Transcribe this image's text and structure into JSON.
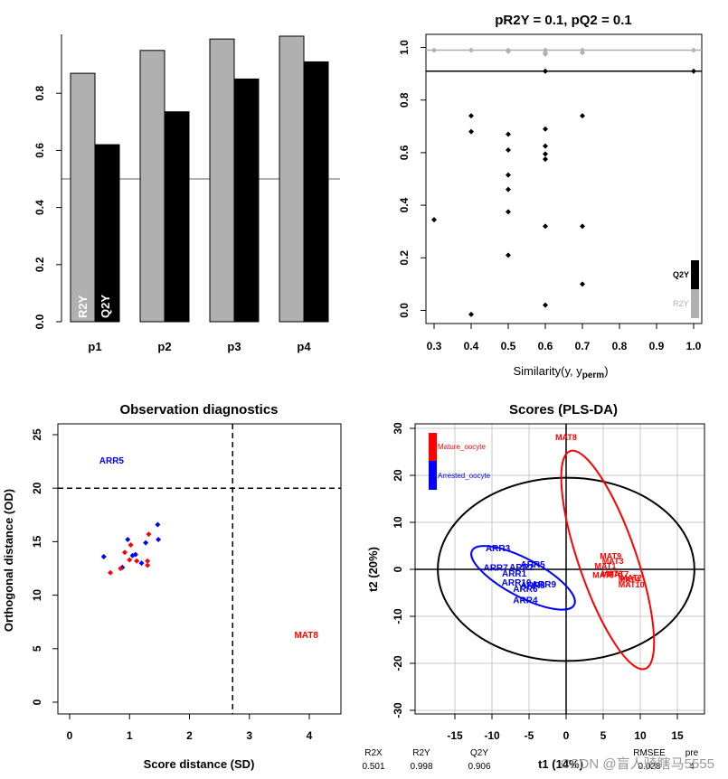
{
  "chart_data": [
    {
      "type": "bar",
      "title": "",
      "categories": [
        "p1",
        "p2",
        "p3",
        "p4"
      ],
      "series": [
        {
          "name": "R2Y",
          "values": [
            0.87,
            0.95,
            0.99,
            1.0
          ],
          "color": "#b0b0b0"
        },
        {
          "name": "Q2Y",
          "values": [
            0.62,
            0.735,
            0.85,
            0.91
          ],
          "color": "#000000"
        }
      ],
      "ylim": [
        0,
        1.0
      ],
      "yticks": [
        "0.0",
        "0.2",
        "0.4",
        "0.6",
        "0.8"
      ],
      "yticks_values": [
        0,
        0.2,
        0.4,
        0.6,
        0.8
      ],
      "reference_line": 0.5,
      "bar_labels": [
        "R2Y",
        "Q2Y"
      ]
    },
    {
      "type": "scatter",
      "title": "pR2Y = 0.1, pQ2 = 0.1",
      "xlabel": "Similarity(y, y",
      "xlabel_sub": "perm",
      "xlabel_close": ")",
      "xlim": [
        0.3,
        1.0
      ],
      "ylim": [
        -0.05,
        1.05
      ],
      "xticks": [
        "0.3",
        "0.4",
        "0.5",
        "0.6",
        "0.7",
        "0.8",
        "0.9",
        "1.0"
      ],
      "xticks_values": [
        0.3,
        0.4,
        0.5,
        0.6,
        0.7,
        0.8,
        0.9,
        1.0
      ],
      "yticks": [
        "0.0",
        "0.2",
        "0.4",
        "0.6",
        "0.8",
        "1.0"
      ],
      "yticks_values": [
        0,
        0.2,
        0.4,
        0.6,
        0.8,
        1.0
      ],
      "series": [
        {
          "name": "R2Y",
          "color": "#b0b0b0",
          "hline": 0.99,
          "points": [
            [
              0.3,
              0.99
            ],
            [
              0.4,
              0.99
            ],
            [
              0.5,
              0.99
            ],
            [
              0.5,
              0.985
            ],
            [
              0.6,
              0.99
            ],
            [
              0.6,
              0.98
            ],
            [
              0.6,
              0.975
            ],
            [
              0.7,
              0.99
            ],
            [
              0.7,
              0.98
            ],
            [
              1.0,
              0.99
            ]
          ]
        },
        {
          "name": "Q2Y",
          "color": "#000000",
          "hline": 0.91,
          "points": [
            [
              0.3,
              0.345
            ],
            [
              0.4,
              -0.015
            ],
            [
              0.4,
              0.68
            ],
            [
              0.4,
              0.74
            ],
            [
              0.5,
              0.21
            ],
            [
              0.5,
              0.375
            ],
            [
              0.5,
              0.46
            ],
            [
              0.5,
              0.515
            ],
            [
              0.5,
              0.61
            ],
            [
              0.5,
              0.67
            ],
            [
              0.6,
              0.02
            ],
            [
              0.6,
              0.32
            ],
            [
              0.6,
              0.575
            ],
            [
              0.6,
              0.595
            ],
            [
              0.6,
              0.625
            ],
            [
              0.6,
              0.69
            ],
            [
              0.6,
              0.91
            ],
            [
              0.7,
              0.1
            ],
            [
              0.7,
              0.32
            ],
            [
              0.7,
              0.74
            ],
            [
              1.0,
              0.91
            ]
          ]
        }
      ],
      "legend": [
        "Q2Y",
        "R2Y"
      ]
    },
    {
      "type": "scatter",
      "title": "Observation diagnostics",
      "xlabel": "Score distance (SD)",
      "ylabel": "Orthogonal distance (OD)",
      "xlim": [
        -0.2,
        4.5
      ],
      "ylim": [
        -1,
        25.5
      ],
      "xticks": [
        "0",
        "1",
        "2",
        "3",
        "4"
      ],
      "xticks_values": [
        0,
        1,
        2,
        3,
        4
      ],
      "yticks": [
        "0",
        "5",
        "10",
        "15",
        "20",
        "25"
      ],
      "yticks_values": [
        0,
        5,
        10,
        15,
        20,
        25
      ],
      "vline": 2.72,
      "hline": 20,
      "series": [
        {
          "name": "Arrested_oocyte",
          "color": "#0000ff",
          "points": [
            [
              0.57,
              13.6
            ],
            [
              0.88,
              12.6
            ],
            [
              0.97,
              15.2
            ],
            [
              1.05,
              13.7
            ],
            [
              1.1,
              13.8
            ],
            [
              1.2,
              13.0
            ],
            [
              1.27,
              14.9
            ],
            [
              1.47,
              16.6
            ],
            [
              1.48,
              15.2
            ]
          ]
        },
        {
          "name": "Mature_oocyte",
          "color": "#ff0000",
          "points": [
            [
              0.68,
              12.1
            ],
            [
              0.85,
              12.5
            ],
            [
              0.92,
              14.0
            ],
            [
              1.0,
              13.3
            ],
            [
              1.02,
              14.7
            ],
            [
              1.12,
              13.2
            ],
            [
              1.3,
              12.8
            ],
            [
              1.32,
              15.7
            ],
            [
              1.3,
              13.2
            ]
          ]
        }
      ],
      "annotations": [
        {
          "text": "ARR5",
          "x": 0.7,
          "y": 22.3,
          "color": "#0000ff"
        },
        {
          "text": "MAT8",
          "x": 3.95,
          "y": 6.0,
          "color": "#ff0000"
        }
      ]
    },
    {
      "type": "scatter",
      "title": "Scores (PLS-DA)",
      "xlabel": "t1 (14%)",
      "ylabel": "t2 (20%)",
      "xlim": [
        -20,
        18
      ],
      "ylim": [
        -30,
        30
      ],
      "xticks": [
        "-15",
        "-10",
        "-5",
        "0",
        "5",
        "10",
        "15"
      ],
      "xticks_values": [
        -15,
        -10,
        -5,
        0,
        5,
        10,
        15
      ],
      "yticks": [
        "-30",
        "-20",
        "-10",
        "0",
        "10",
        "20",
        "30"
      ],
      "yticks_values": [
        -30,
        -20,
        -10,
        0,
        10,
        20,
        30
      ],
      "legend": [
        "Mature_oocyte",
        "Arrested_oocyte"
      ],
      "labels_blue": [
        "ARR3",
        "ARR7",
        "ARR5",
        "ARR2",
        "ARR1",
        "ARR8",
        "ARR10",
        "ARR6",
        "ARR9",
        "ARR4"
      ],
      "labels_red": [
        "MAT8",
        "MAT9",
        "MAT3",
        "MAT1",
        "MAT5",
        "MAT6",
        "MAT7",
        "MAT2",
        "MAT4",
        "MAT10"
      ],
      "label_positions_blue": [
        [
          -9.2,
          3.8
        ],
        [
          -9.5,
          -0.3
        ],
        [
          -4.5,
          0.4
        ],
        [
          -6,
          -0.2
        ],
        [
          -7,
          -1.5
        ],
        [
          -4.5,
          -4.0
        ],
        [
          -6.7,
          -3.5
        ],
        [
          -5.5,
          -4.8
        ],
        [
          -3,
          -3.8
        ],
        [
          -5.5,
          -7.2
        ]
      ],
      "label_positions_red": [
        [
          0,
          27.5
        ],
        [
          6,
          2.2
        ],
        [
          6.3,
          1.2
        ],
        [
          5.3,
          0.1
        ],
        [
          5,
          -1.8
        ],
        [
          6.2,
          -1.5
        ],
        [
          7,
          -1.6
        ],
        [
          8.8,
          -2.4
        ],
        [
          8.5,
          -2.8
        ],
        [
          8.8,
          -3.8
        ]
      ],
      "ellipse_overall": {
        "cx": 0,
        "cy": 0,
        "rx": 17.3,
        "ry": 19.5
      },
      "summary_headers": [
        "R2X",
        "R2Y",
        "Q2Y",
        "RMSEE",
        "pre"
      ],
      "summary_values": [
        "0.501",
        "0.998",
        "0.906",
        "0.028",
        "4"
      ]
    }
  ],
  "watermark": "CSDN @盲人骑瞎马5555"
}
